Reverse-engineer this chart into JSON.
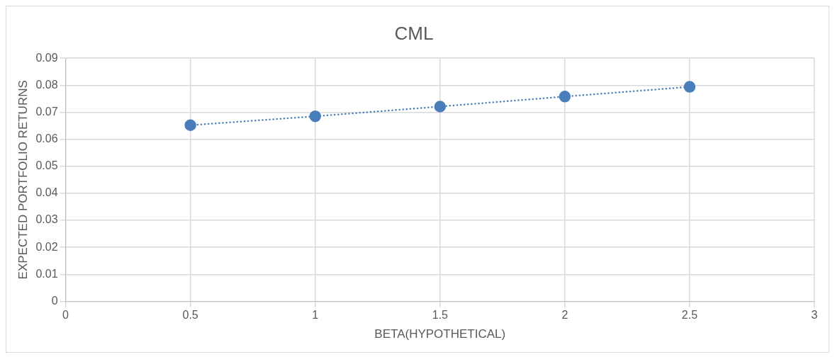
{
  "chart_data": {
    "type": "line",
    "title": "CML",
    "xlabel": "BETA(HYPOTHETICAL)",
    "ylabel": "EXPECTED PORTFOLIO RETURNS",
    "x": [
      0.5,
      1,
      1.5,
      2,
      2.5
    ],
    "series": [
      {
        "color": "#4a7ebb",
        "values": [
          0.0652,
          0.0685,
          0.0721,
          0.0758,
          0.0794
        ]
      }
    ],
    "xlim": [
      0,
      3
    ],
    "xticks": [
      0,
      0.5,
      1,
      1.5,
      2,
      2.5,
      3
    ],
    "ylim": [
      0,
      0.09
    ],
    "yticks": [
      0,
      0.01,
      0.02,
      0.03,
      0.04,
      0.05,
      0.06,
      0.07,
      0.08,
      0.09
    ],
    "grid": true,
    "legend": false,
    "marker": "circle",
    "line_style": "dotted"
  }
}
